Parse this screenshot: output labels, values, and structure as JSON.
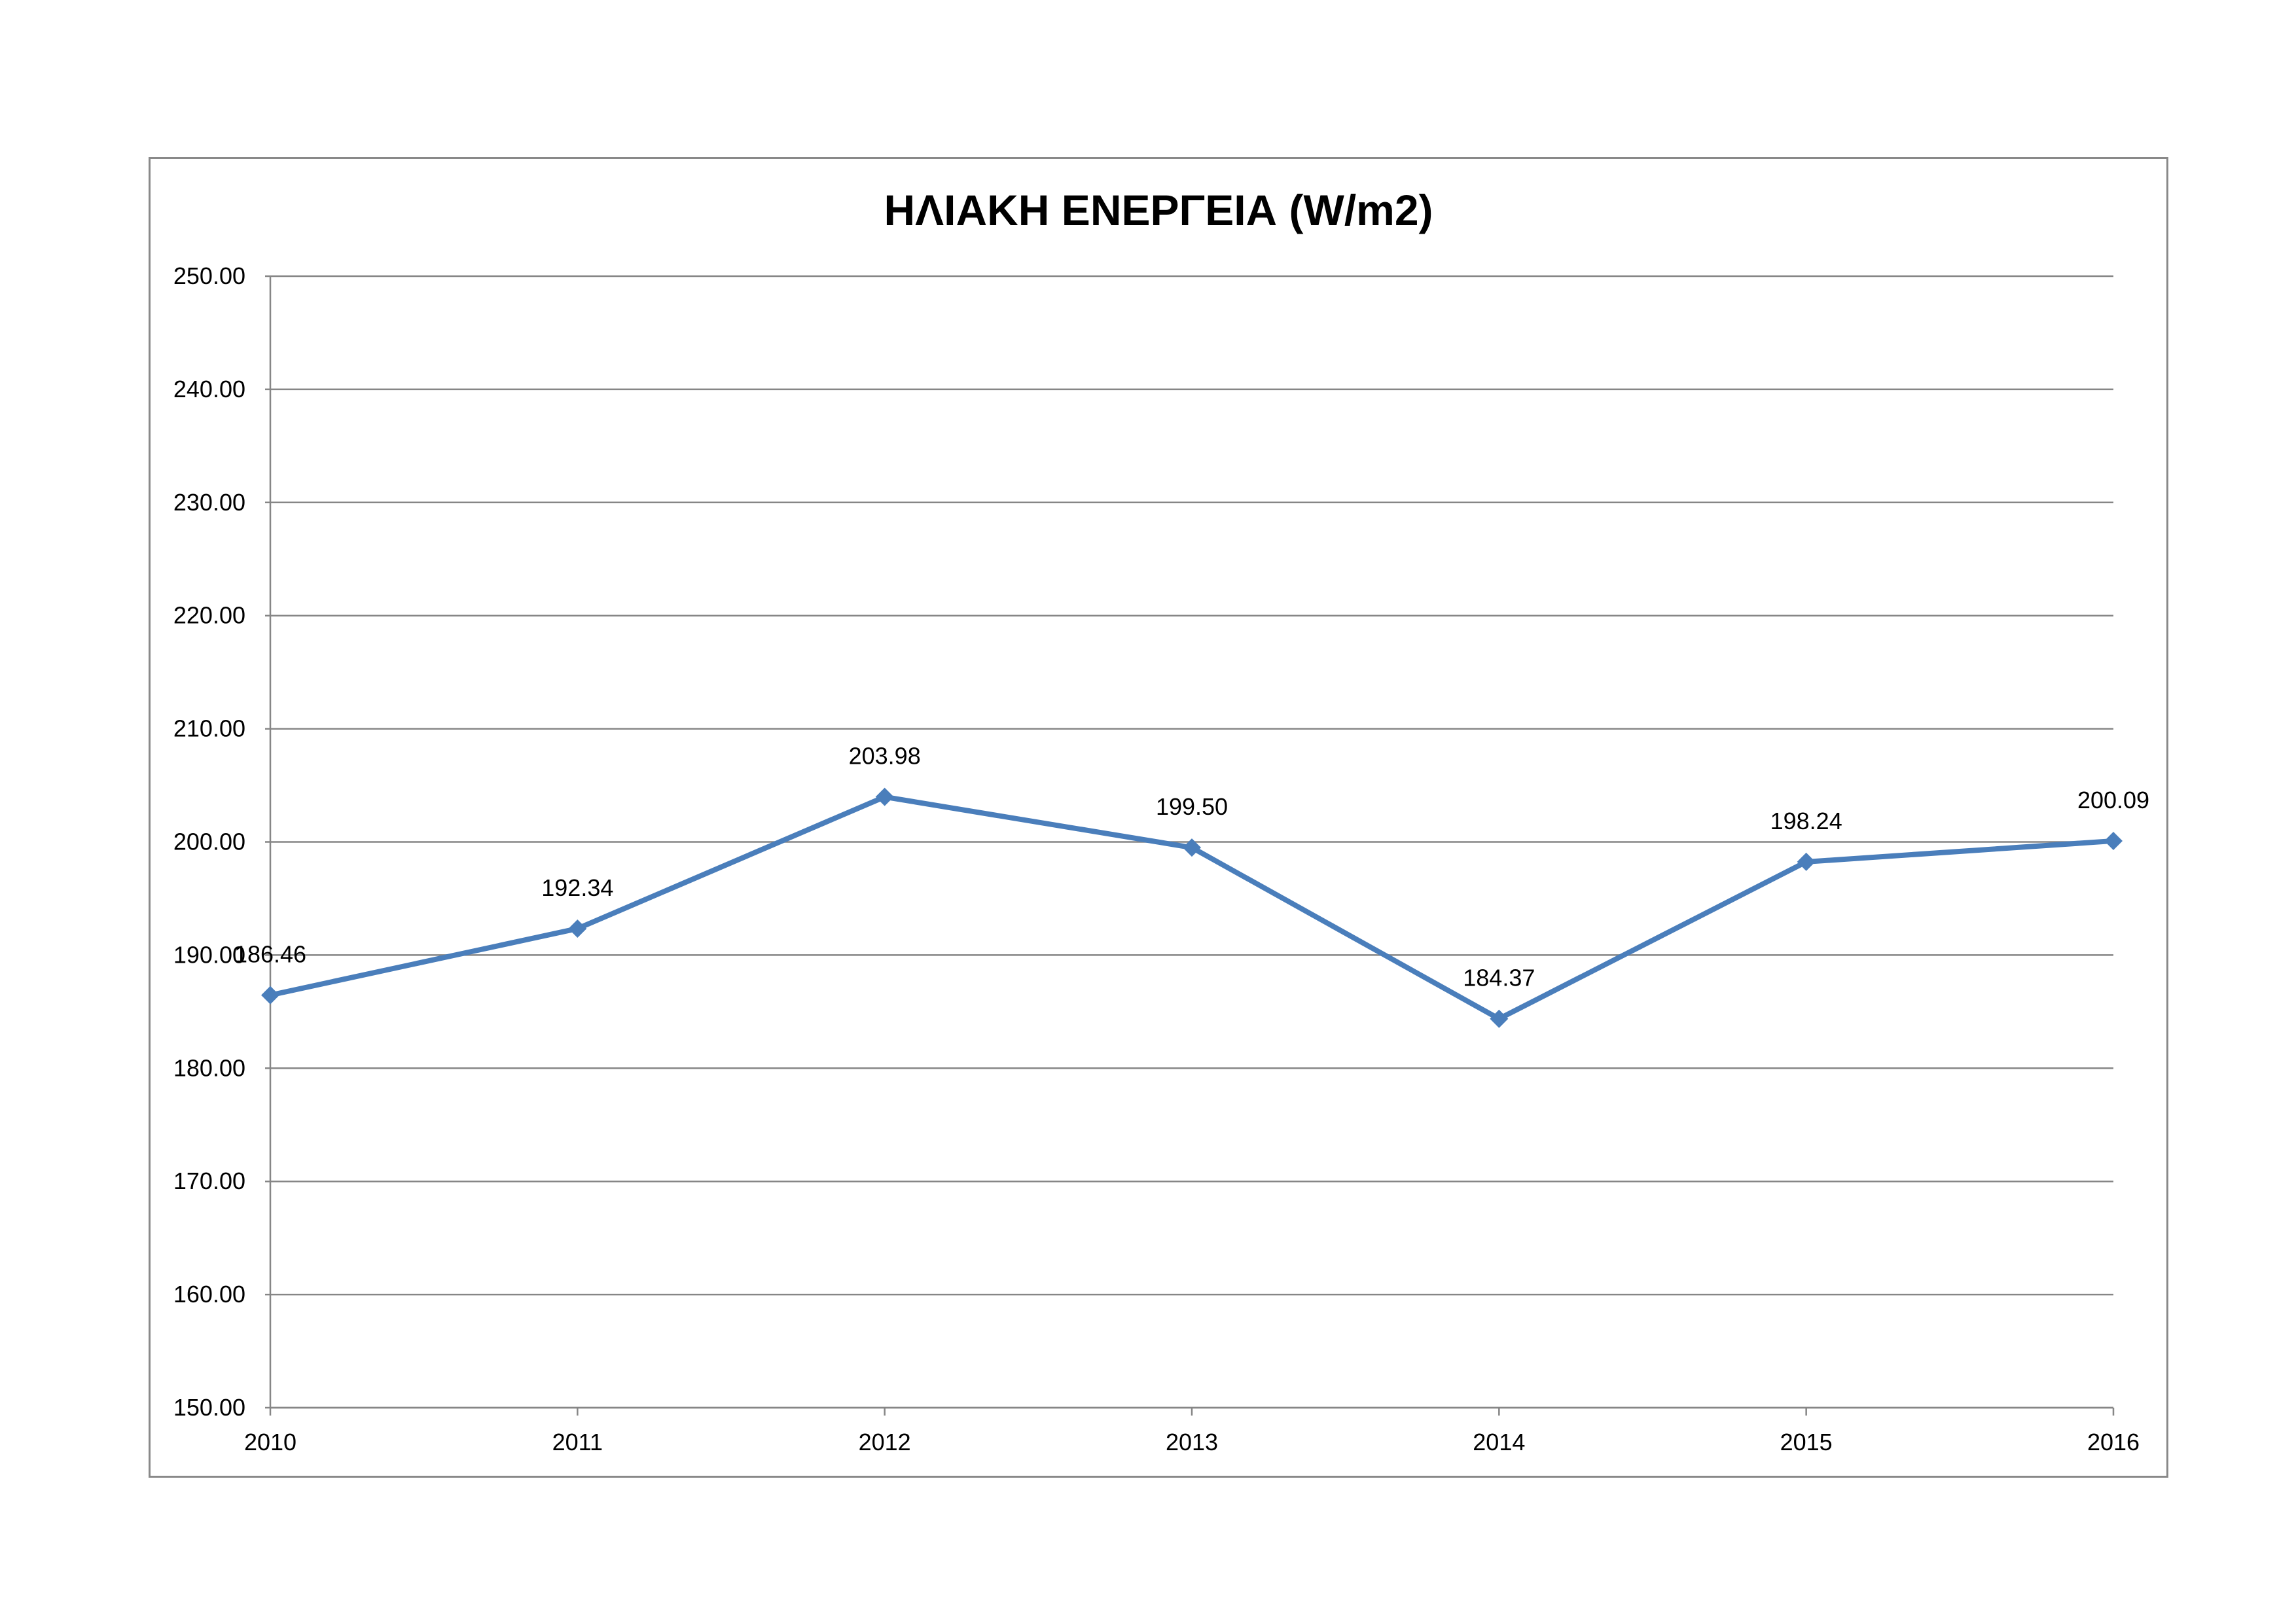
{
  "chart_data": {
    "type": "line",
    "title": "ΗΛΙΑΚΗ ΕΝΕΡΓΕΙΑ (W/m2)",
    "xlabel": "",
    "ylabel": "",
    "categories": [
      "2010",
      "2011",
      "2012",
      "2013",
      "2014",
      "2015",
      "2016"
    ],
    "series": [
      {
        "values": [
          186.46,
          192.34,
          203.98,
          199.5,
          184.37,
          198.24,
          200.09
        ],
        "data_labels": [
          "186.46",
          "192.34",
          "203.98",
          "199.50",
          "184.37",
          "198.24",
          "200.09"
        ],
        "color": "#4a7ebb",
        "marker": "diamond"
      }
    ],
    "ylim": [
      150,
      250
    ],
    "yticks": [
      "150.00",
      "160.00",
      "170.00",
      "180.00",
      "190.00",
      "200.00",
      "210.00",
      "220.00",
      "230.00",
      "240.00",
      "250.00"
    ],
    "grid": true,
    "gridline_color": "#868686",
    "axis_color": "#868686",
    "legend": "none"
  }
}
